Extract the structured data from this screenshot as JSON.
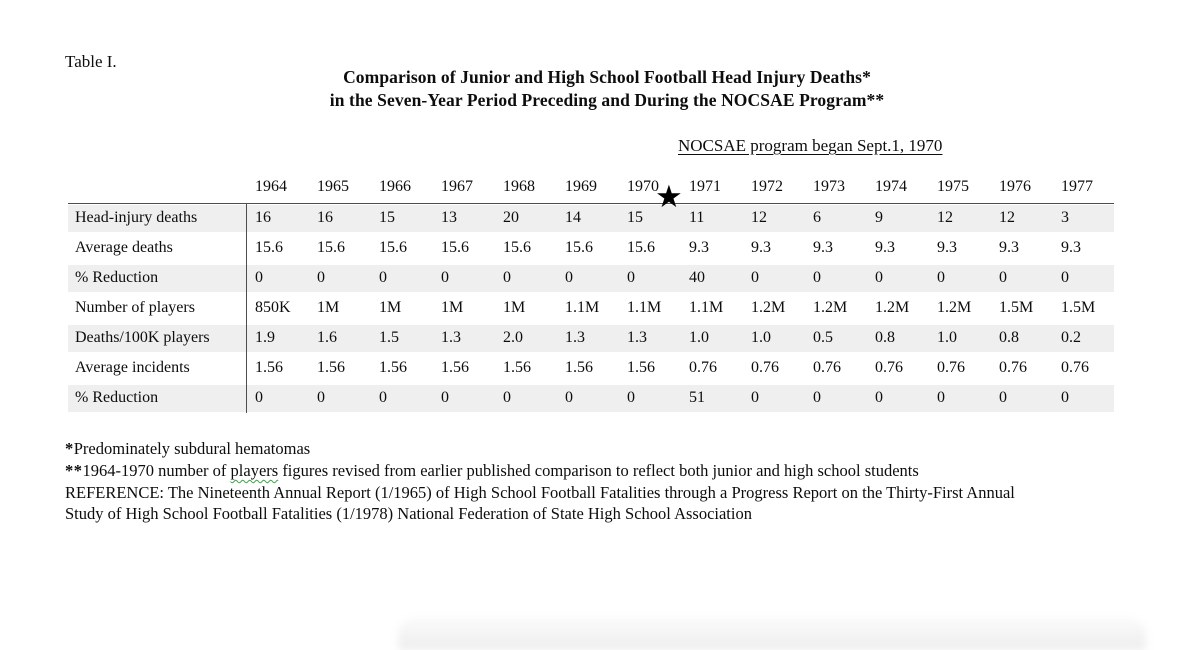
{
  "page": {
    "table_label": "Table I.",
    "title_line1": "Comparison of Junior and High School Football Head Injury Deaths*",
    "title_line2": "in the Seven-Year Period Preceding and During the NOCSAE Program**",
    "program_note": "NOCSAE program began Sept.1, 1970",
    "star_icon": "★"
  },
  "table": {
    "columns": [
      "1964",
      "1965",
      "1966",
      "1967",
      "1968",
      "1969",
      "1970",
      "1971",
      "1972",
      "1973",
      "1974",
      "1975",
      "1976",
      "1977"
    ],
    "rows": [
      {
        "label": "Head-injury deaths",
        "shaded": true,
        "values": [
          "16",
          "16",
          "15",
          "13",
          "20",
          "14",
          "15",
          "11",
          "12",
          "6",
          "9",
          "12",
          "12",
          "3"
        ]
      },
      {
        "label": "Average deaths",
        "shaded": false,
        "values": [
          "15.6",
          "15.6",
          "15.6",
          "15.6",
          "15.6",
          "15.6",
          "15.6",
          "9.3",
          "9.3",
          "9.3",
          "9.3",
          "9.3",
          "9.3",
          "9.3"
        ]
      },
      {
        "label": "% Reduction",
        "shaded": true,
        "values": [
          "0",
          "0",
          "0",
          "0",
          "0",
          "0",
          "0",
          "40",
          "0",
          "0",
          "0",
          "0",
          "0",
          "0"
        ]
      },
      {
        "label": "Number of players",
        "shaded": false,
        "values": [
          "850K",
          "1M",
          "1M",
          "1M",
          "1M",
          "1.1M",
          "1.1M",
          "1.1M",
          "1.2M",
          "1.2M",
          "1.2M",
          "1.2M",
          "1.5M",
          "1.5M"
        ]
      },
      {
        "label": "Deaths/100K players",
        "shaded": true,
        "values": [
          "1.9",
          "1.6",
          "1.5",
          "1.3",
          "2.0",
          "1.3",
          "1.3",
          "1.0",
          "1.0",
          "0.5",
          "0.8",
          "1.0",
          "0.8",
          "0.2"
        ]
      },
      {
        "label": "Average incidents",
        "shaded": false,
        "values": [
          "1.56",
          "1.56",
          "1.56",
          "1.56",
          "1.56",
          "1.56",
          "1.56",
          "0.76",
          "0.76",
          "0.76",
          "0.76",
          "0.76",
          "0.76",
          "0.76"
        ]
      },
      {
        "label": "% Reduction",
        "shaded": true,
        "values": [
          "0",
          "0",
          "0",
          "0",
          "0",
          "0",
          "0",
          "51",
          "0",
          "0",
          "0",
          "0",
          "0",
          "0"
        ]
      }
    ]
  },
  "footnotes": {
    "line1_marker": "*",
    "line1_text": "Predominately subdural hematomas",
    "line2_marker": "**",
    "line2_before": "1964-1970 number of ",
    "line2_misspelled": "players",
    "line2_after": " figures revised from earlier published comparison to reflect both junior and high school students",
    "line3": "REFERENCE: The Nineteenth Annual Report (1/1965) of High School Football Fatalities through a Progress Report on the Thirty-First Annual",
    "line4": "Study of High School Football Fatalities (1/1978) National Federation of State High School Association"
  },
  "colors": {
    "row_shade": "#efefef",
    "rule": "#4d4d4d",
    "text": "#0d0d0d",
    "squiggle": "#3aa345",
    "background": "#ffffff"
  }
}
